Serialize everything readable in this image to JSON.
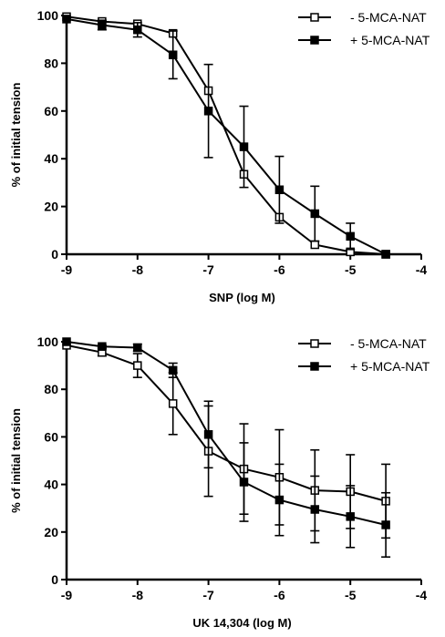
{
  "chart_data": [
    {
      "type": "line",
      "title": "",
      "xlabel": "SNP (log M)",
      "ylabel": "% of initial tension",
      "xlim": [
        -9,
        -4
      ],
      "ylim": [
        0,
        100
      ],
      "xticks": [
        -9,
        -8,
        -7,
        -6,
        -5,
        -4
      ],
      "yticks": [
        0,
        20,
        40,
        60,
        80,
        100
      ],
      "grid": false,
      "legend_position": "top-right",
      "x": [
        -9,
        -8.5,
        -8,
        -7.5,
        -7,
        -6.5,
        -6,
        -5.5,
        -5,
        -4.5
      ],
      "series": [
        {
          "name": "- 5-MCA-NAT",
          "marker": "open-square",
          "color": "#000000",
          "values": [
            99.5,
            97.5,
            96.5,
            92.5,
            68.5,
            33.5,
            15.5,
            4,
            1,
            0
          ],
          "errors": [
            0,
            0,
            0,
            0,
            0,
            0,
            0,
            0,
            0,
            0
          ]
        },
        {
          "name": "+ 5-MCA-NAT",
          "marker": "filled-square",
          "color": "#000000",
          "values": [
            98.5,
            96,
            94,
            83.5,
            60,
            45,
            27,
            17,
            7.5,
            0
          ],
          "errors": [
            0,
            2,
            3,
            10,
            19.5,
            17,
            14,
            11.5,
            5.5,
            0
          ]
        }
      ]
    },
    {
      "type": "line",
      "title": "",
      "xlabel": "UK 14,304 (log M)",
      "ylabel": "% of initial tension",
      "xlim": [
        -9,
        -4
      ],
      "ylim": [
        0,
        100
      ],
      "xticks": [
        -9,
        -8,
        -7,
        -6,
        -5,
        -4
      ],
      "yticks": [
        0,
        20,
        40,
        60,
        80,
        100
      ],
      "grid": false,
      "legend_position": "top-right",
      "x": [
        -9,
        -8.5,
        -8,
        -7.5,
        -7,
        -6.5,
        -6,
        -5.5,
        -5,
        -4.5
      ],
      "series": [
        {
          "name": "- 5-MCA-NAT",
          "marker": "open-square",
          "color": "#000000",
          "values": [
            98.5,
            95.5,
            90,
            74,
            54,
            46.5,
            43,
            37.5,
            37,
            33
          ],
          "errors": [
            0,
            1.5,
            5,
            13,
            19,
            19,
            20,
            17,
            15.5,
            15.5
          ]
        },
        {
          "name": "+ 5-MCA-NAT",
          "marker": "filled-square",
          "color": "#000000",
          "values": [
            100,
            98,
            97.5,
            88,
            61,
            41,
            33.5,
            29.5,
            26.5,
            23
          ],
          "errors": [
            0,
            0.5,
            1.5,
            3,
            14,
            16.5,
            15,
            14,
            13,
            13.5
          ]
        }
      ]
    }
  ]
}
